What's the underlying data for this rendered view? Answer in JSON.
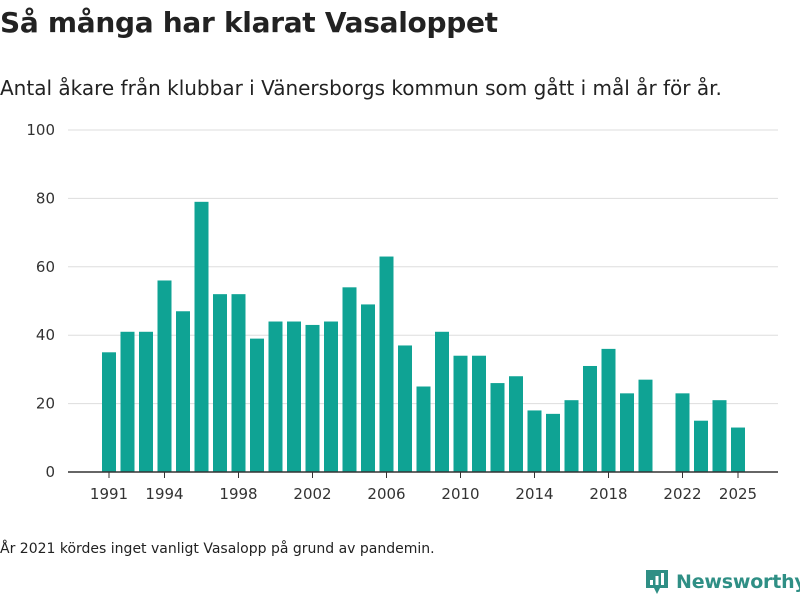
{
  "title": "Så många har klarat Vasaloppet",
  "subtitle": "Antal åkare från klubbar i Vänersborgs kommun som gått i mål år för år.",
  "footnote": "År 2021 kördes inget vanligt Vasalopp på grund av pandemin.",
  "brand": {
    "name": "Newsworthy",
    "icon": "newsworthy-logo-icon",
    "color": "#2f8f85"
  },
  "colors": {
    "bar": "#0fa394",
    "grid": "#dddddd",
    "axis": "#333333"
  },
  "chart_data": {
    "type": "bar",
    "title": "Så många har klarat Vasaloppet",
    "xlabel": "",
    "ylabel": "",
    "ylim": [
      0,
      100
    ],
    "yticks": [
      0,
      20,
      40,
      60,
      80,
      100
    ],
    "xticks": [
      "1991",
      "1994",
      "1998",
      "2002",
      "2006",
      "2010",
      "2014",
      "2018",
      "2022",
      "2025"
    ],
    "grid": true,
    "categories": [
      "1991",
      "1992",
      "1993",
      "1994",
      "1995",
      "1996",
      "1997",
      "1998",
      "1999",
      "2000",
      "2001",
      "2002",
      "2003",
      "2004",
      "2005",
      "2006",
      "2007",
      "2008",
      "2009",
      "2010",
      "2011",
      "2012",
      "2013",
      "2014",
      "2015",
      "2016",
      "2017",
      "2018",
      "2019",
      "2020",
      "2021",
      "2022",
      "2023",
      "2024",
      "2025"
    ],
    "values": [
      35,
      41,
      41,
      56,
      47,
      79,
      52,
      52,
      39,
      44,
      44,
      43,
      44,
      54,
      49,
      63,
      37,
      25,
      41,
      34,
      34,
      26,
      28,
      18,
      17,
      21,
      31,
      36,
      23,
      27,
      null,
      23,
      15,
      21,
      13
    ]
  }
}
